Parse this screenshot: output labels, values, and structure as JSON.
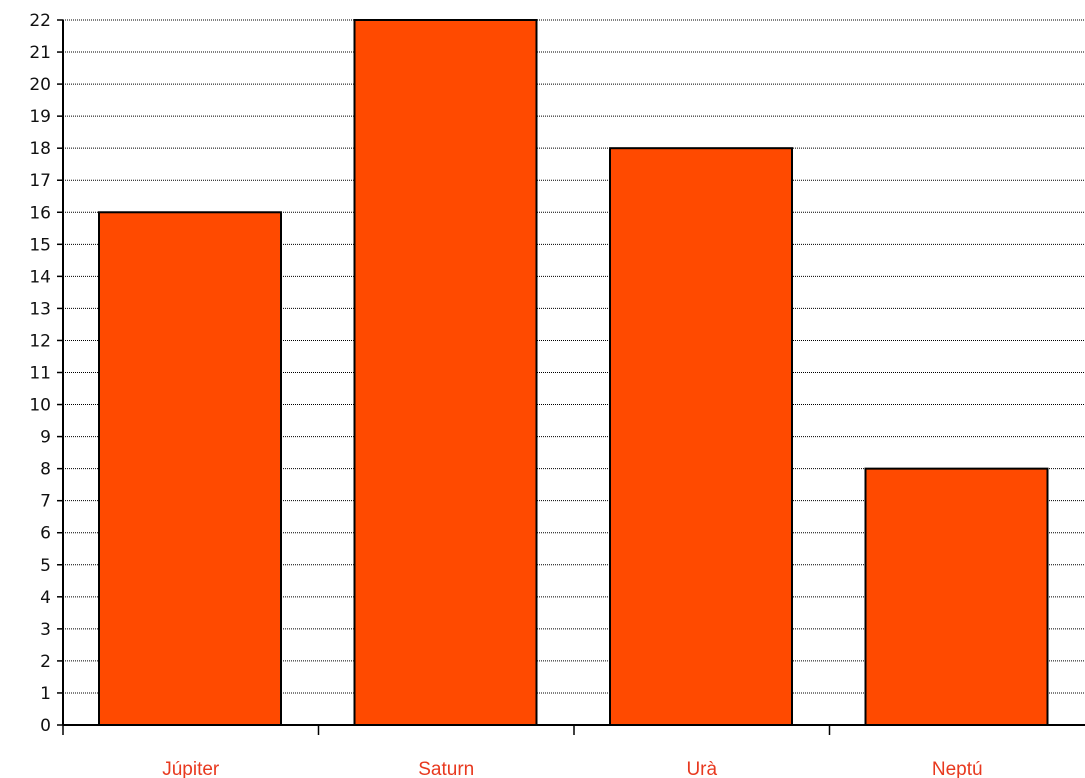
{
  "chart_data": {
    "type": "bar",
    "categories": [
      "Júpiter",
      "Saturn",
      "Urà",
      "Neptú"
    ],
    "values": [
      16,
      22,
      18,
      8
    ],
    "title": "",
    "xlabel": "",
    "ylabel": "",
    "ylim": [
      0,
      22
    ],
    "ytick_step": 1,
    "grid": true,
    "bar_color": "#FF4A00",
    "category_label_color": "#E8391F",
    "axis_color": "#000000"
  }
}
